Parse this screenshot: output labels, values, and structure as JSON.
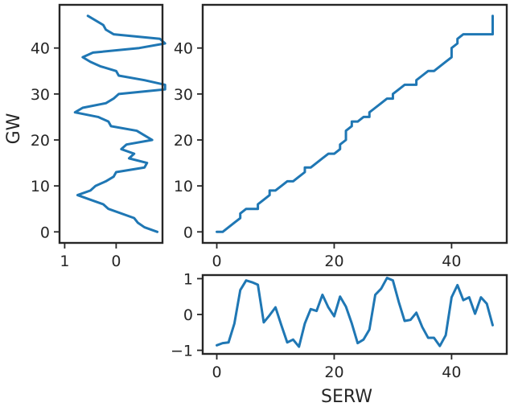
{
  "chart_data": [
    {
      "id": "main",
      "type": "line",
      "x": [
        0,
        1,
        2,
        3,
        4,
        4,
        5,
        6,
        7,
        7,
        8,
        9,
        9,
        10,
        11,
        12,
        13,
        14,
        15,
        15,
        16,
        17,
        18,
        19,
        20,
        21,
        21,
        22,
        22,
        23,
        23,
        24,
        25,
        26,
        26,
        27,
        28,
        29,
        30,
        30,
        31,
        32,
        33,
        34,
        34,
        35,
        36,
        37,
        38,
        39,
        40,
        40,
        41,
        41,
        42,
        43,
        44,
        45,
        46,
        47,
        47,
        47
      ],
      "series": [
        {
          "values": [
            0,
            0,
            1,
            2,
            3,
            4,
            5,
            5,
            5,
            6,
            7,
            8,
            9,
            9,
            10,
            11,
            11,
            12,
            13,
            14,
            14,
            15,
            16,
            17,
            17,
            18,
            19,
            20,
            22,
            23,
            24,
            24,
            25,
            25,
            26,
            27,
            28,
            29,
            29,
            30,
            31,
            32,
            32,
            32,
            33,
            34,
            35,
            35,
            36,
            37,
            38,
            40,
            41,
            42,
            43,
            43,
            43,
            43,
            43,
            43,
            44,
            47
          ]
        }
      ],
      "xlim": [
        -2.4,
        49.4
      ],
      "ylim": [
        -2.4,
        49.4
      ],
      "xticks": [
        0,
        20,
        40
      ],
      "yticks": [
        0,
        10,
        20,
        30,
        40
      ],
      "xtick_labels": [
        "0",
        "20",
        "40"
      ],
      "ytick_labels": [
        "0",
        "10",
        "20",
        "30",
        "40"
      ],
      "grid": false
    },
    {
      "id": "bottom",
      "type": "line",
      "x": [
        0,
        1,
        2,
        3,
        4,
        5,
        6,
        7,
        8,
        9,
        10,
        11,
        12,
        13,
        14,
        15,
        16,
        17,
        18,
        19,
        20,
        21,
        22,
        23,
        24,
        25,
        26,
        27,
        28,
        29,
        30,
        31,
        32,
        33,
        34,
        35,
        36,
        37,
        38,
        39,
        40,
        41,
        42,
        43,
        44,
        45,
        46,
        47
      ],
      "series": [
        {
          "values": [
            -0.86,
            -0.8,
            -0.78,
            -0.25,
            0.68,
            0.95,
            0.9,
            0.83,
            -0.22,
            -0.02,
            0.2,
            -0.3,
            -0.78,
            -0.7,
            -0.9,
            -0.25,
            0.15,
            0.1,
            0.55,
            0.2,
            -0.05,
            0.5,
            0.22,
            -0.25,
            -0.8,
            -0.7,
            -0.42,
            0.55,
            0.72,
            1.02,
            0.95,
            0.35,
            -0.18,
            -0.15,
            0.05,
            -0.35,
            -0.65,
            -0.65,
            -0.88,
            -0.58,
            0.48,
            0.82,
            0.4,
            0.48,
            0.02,
            0.48,
            0.3,
            -0.3
          ]
        }
      ],
      "xlim": [
        -2.4,
        49.4
      ],
      "ylim": [
        -1.1,
        1.1
      ],
      "xticks": [
        0,
        20,
        40
      ],
      "yticks": [
        -1,
        0,
        1
      ],
      "xtick_labels": [
        "0",
        "20",
        "40"
      ],
      "ytick_labels": [
        "−1",
        "0",
        "1"
      ],
      "xlabel": "SERW",
      "grid": false
    },
    {
      "id": "left",
      "type": "line",
      "x": [
        -0.8,
        -0.55,
        -0.42,
        -0.35,
        0.15,
        0.25,
        0.5,
        0.75,
        0.5,
        0.4,
        0.2,
        0.05,
        0.0,
        -0.55,
        -0.6,
        -0.25,
        -0.35,
        -0.1,
        -0.2,
        -0.7,
        -0.55,
        -0.4,
        0.1,
        0.15,
        0.35,
        0.8,
        0.65,
        0.2,
        0.05,
        -0.05,
        -0.95,
        -0.95,
        -0.55,
        -0.05,
        0.0,
        0.3,
        0.5,
        0.65,
        0.45,
        -0.45,
        -0.95,
        -0.85,
        0.05,
        0.2,
        0.25,
        0.55
      ],
      "series": [
        {
          "values": [
            0,
            1,
            2,
            3,
            5,
            6,
            7,
            8,
            9,
            10,
            11,
            12,
            13,
            14,
            15,
            16,
            17,
            18,
            19,
            20,
            21,
            22,
            23,
            24,
            25,
            26,
            27,
            28,
            29,
            30,
            31,
            32,
            33,
            34,
            35,
            36,
            37,
            38,
            39,
            40,
            41,
            42,
            43,
            44,
            45,
            47
          ]
        }
      ],
      "xlim": [
        1.1,
        -0.9
      ],
      "ylim": [
        -2.4,
        49.4
      ],
      "xticks": [
        1,
        0
      ],
      "yticks": [
        0,
        10,
        20,
        30,
        40
      ],
      "xtick_labels": [
        "1",
        "0"
      ],
      "ytick_labels": [
        "0",
        "10",
        "20",
        "30",
        "40"
      ],
      "ylabel": "GW",
      "grid": false
    }
  ]
}
